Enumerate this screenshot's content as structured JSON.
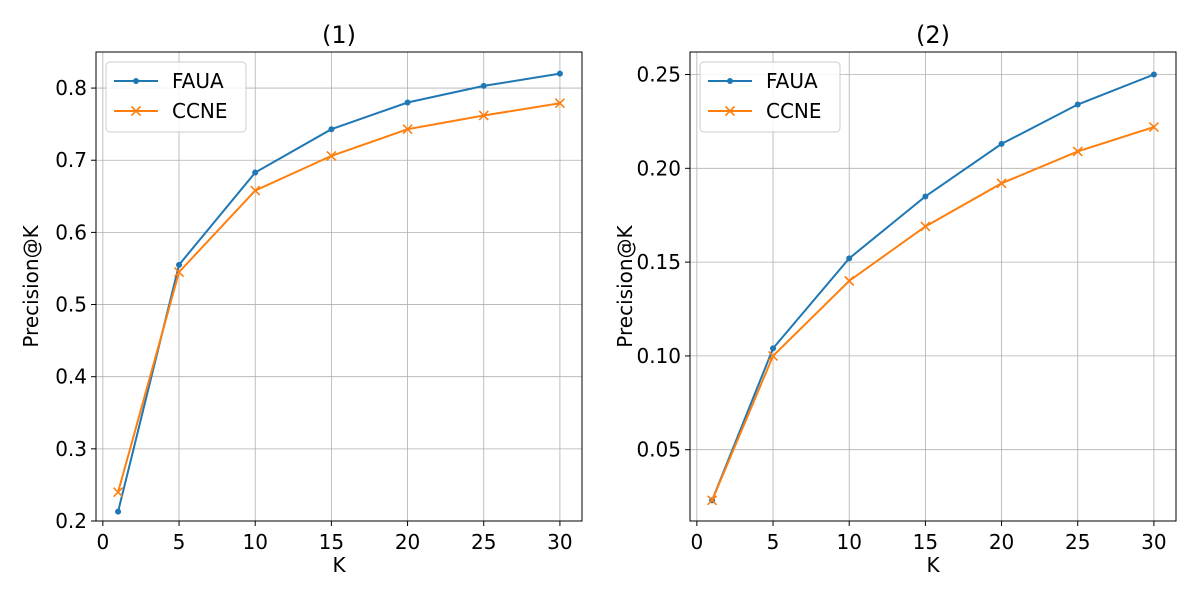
{
  "chart_data": [
    {
      "type": "line",
      "title": "(1)",
      "xlabel": "K",
      "ylabel": "Precision@K",
      "x": [
        1,
        5,
        10,
        15,
        20,
        25,
        30
      ],
      "xlim": [
        -0.45,
        31.45
      ],
      "ylim": [
        0.2,
        0.85
      ],
      "xticks": [
        0,
        5,
        10,
        15,
        20,
        25,
        30
      ],
      "yticks": [
        0.2,
        0.3,
        0.4,
        0.5,
        0.6,
        0.7,
        0.8
      ],
      "ytick_labels": [
        "0.2",
        "0.3",
        "0.4",
        "0.5",
        "0.6",
        "0.7",
        "0.8"
      ],
      "grid": true,
      "legend_position": "top-left",
      "series": [
        {
          "name": "FAUA",
          "color": "#1f77b4",
          "marker": "dot",
          "values": [
            0.213,
            0.555,
            0.683,
            0.743,
            0.78,
            0.803,
            0.82
          ]
        },
        {
          "name": "CCNE",
          "color": "#ff7f0e",
          "marker": "x",
          "values": [
            0.24,
            0.545,
            0.658,
            0.706,
            0.743,
            0.762,
            0.779
          ]
        }
      ]
    },
    {
      "type": "line",
      "title": "(2)",
      "xlabel": "K",
      "ylabel": "Precision@K",
      "x": [
        1,
        5,
        10,
        15,
        20,
        25,
        30
      ],
      "xlim": [
        -0.45,
        31.45
      ],
      "ylim": [
        0.012,
        0.262
      ],
      "xticks": [
        0,
        5,
        10,
        15,
        20,
        25,
        30
      ],
      "yticks": [
        0.05,
        0.1,
        0.15,
        0.2,
        0.25
      ],
      "ytick_labels": [
        "0.05",
        "0.10",
        "0.15",
        "0.20",
        "0.25"
      ],
      "grid": true,
      "legend_position": "top-left",
      "series": [
        {
          "name": "FAUA",
          "color": "#1f77b4",
          "marker": "dot",
          "values": [
            0.023,
            0.104,
            0.152,
            0.185,
            0.213,
            0.234,
            0.25
          ]
        },
        {
          "name": "CCNE",
          "color": "#ff7f0e",
          "marker": "x",
          "values": [
            0.023,
            0.1,
            0.14,
            0.169,
            0.192,
            0.209,
            0.222
          ]
        }
      ]
    }
  ]
}
